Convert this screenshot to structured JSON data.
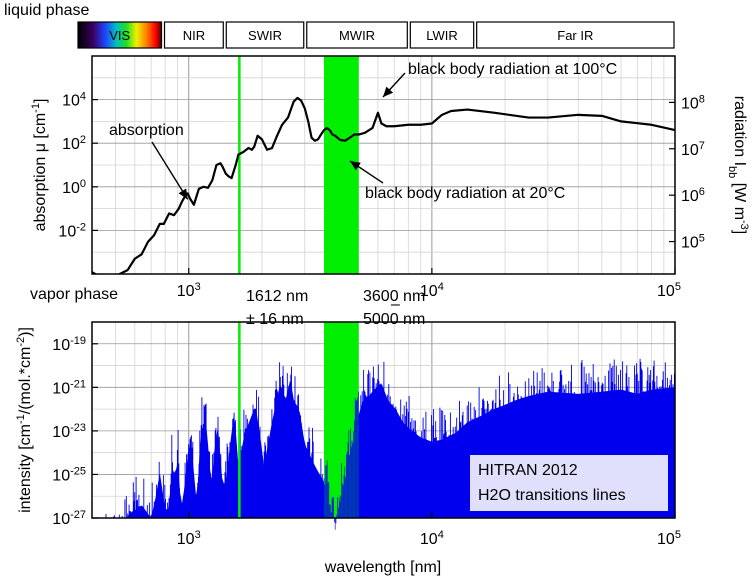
{
  "chart_data": [
    {
      "type": "line",
      "title": "liquid phase",
      "x_scale": "log",
      "xlim_nm": [
        400,
        100000
      ],
      "x_ticks": [
        1000,
        10000,
        100000
      ],
      "x_tick_labels": [
        [
          "10",
          "3"
        ],
        [
          "10",
          "4"
        ],
        [
          "10",
          "5"
        ]
      ],
      "grid": true,
      "left_axis": {
        "label": "absorption  μ [cm",
        "label_sup": "-1",
        "label_end": "]",
        "scale": "log",
        "ylim": [
          0.0001,
          1000000
        ],
        "ticks": [
          0.01,
          1,
          100,
          10000
        ],
        "tick_labels": [
          [
            "10",
            "-2"
          ],
          [
            "10",
            "0"
          ],
          [
            "10",
            "2"
          ],
          [
            "10",
            "4"
          ]
        ]
      },
      "right_axis": {
        "label": "radiation I",
        "label_sub": "bb",
        "label_units": " [W m",
        "label_sup": "-3",
        "label_end": "]",
        "scale": "log",
        "ylim": [
          20000,
          1000000000
        ],
        "ticks": [
          100000,
          1000000,
          10000000,
          100000000
        ],
        "tick_labels": [
          [
            "10",
            "5"
          ],
          [
            "10",
            "6"
          ],
          [
            "10",
            "7"
          ],
          [
            "10",
            "8"
          ]
        ]
      },
      "bands": [
        {
          "name": "VIS",
          "from": 400,
          "to": 780
        },
        {
          "name": "NIR",
          "from": 780,
          "to": 1400
        },
        {
          "name": "SWIR",
          "from": 1400,
          "to": 3000
        },
        {
          "name": "MWIR",
          "from": 3000,
          "to": 8000
        },
        {
          "name": "LWIR",
          "from": 8000,
          "to": 15000
        },
        {
          "name": "Far IR",
          "from": 15000,
          "to": 100000
        }
      ],
      "series": [
        {
          "name": "absorption",
          "axis": "left",
          "color": "#000000",
          "x": [
            400,
            450,
            480,
            520,
            560,
            600,
            640,
            680,
            720,
            760,
            790,
            830,
            870,
            910,
            940,
            970,
            990,
            1010,
            1050,
            1100,
            1150,
            1200,
            1250,
            1300,
            1350,
            1380,
            1420,
            1460,
            1500,
            1560,
            1600,
            1680,
            1760,
            1820,
            1860,
            1920,
            2000,
            2100,
            2200,
            2300,
            2420,
            2560,
            2700,
            2800,
            2900,
            3000,
            3100,
            3200,
            3300,
            3400,
            3500,
            3600,
            3700,
            3800,
            3900,
            4000,
            4200,
            4400,
            4600,
            4800,
            5000,
            5300,
            5700,
            6000,
            6200,
            6500,
            7000,
            8000,
            9000,
            10000,
            11000,
            12000,
            14000,
            18000,
            25000,
            30000,
            40000,
            50000,
            60000,
            80000,
            100000
          ],
          "y": [
            0.00012,
            6e-05,
            5e-05,
            0.0001,
            0.00015,
            0.0005,
            0.0008,
            0.003,
            0.006,
            0.02,
            0.02,
            0.06,
            0.05,
            0.1,
            0.22,
            0.4,
            0.5,
            0.3,
            0.15,
            0.8,
            1.0,
            0.9,
            2.0,
            10,
            12,
            8,
            4,
            3,
            2.5,
            10,
            30,
            40,
            60,
            50,
            70,
            220,
            150,
            50,
            60,
            200,
            700,
            1500,
            8000,
            12000,
            9000,
            4000,
            1000,
            180,
            130,
            150,
            250,
            400,
            500,
            400,
            250,
            220,
            140,
            130,
            180,
            250,
            250,
            300,
            500,
            2500,
            800,
            600,
            600,
            700,
            700,
            800,
            2000,
            3000,
            3500,
            2500,
            1500,
            1500,
            2000,
            1800,
            1000,
            700,
            400
          ]
        },
        {
          "name": "black body radiation at 100°C",
          "axis": "right",
          "color": "#e00000",
          "dashed": true,
          "temperature_K": 373.15
        },
        {
          "name": "black body radiation at 20°C",
          "axis": "right",
          "color": "#0000d0",
          "dashed": true,
          "temperature_K": 293.15
        }
      ],
      "highlights": [
        {
          "color": "#00ee00",
          "from": 1596,
          "to": 1628
        },
        {
          "color": "#00ee00",
          "from": 3600,
          "to": 5000
        }
      ],
      "annotations": [
        {
          "text": "absorption",
          "target_series": "absorption"
        },
        {
          "text": "black body radiation at 100°C",
          "target_series": "black body radiation at 100°C"
        },
        {
          "text": "black body radiation at 20°C",
          "target_series": "black body radiation at 20°C"
        }
      ]
    },
    {
      "type": "bar",
      "title": "vapor phase",
      "x_scale": "log",
      "xlim_nm": [
        400,
        100000
      ],
      "x_ticks": [
        1000,
        10000,
        100000
      ],
      "x_tick_labels": [
        [
          "10",
          "3"
        ],
        [
          "10",
          "4"
        ],
        [
          "10",
          "5"
        ]
      ],
      "xlabel": "wavelength [nm]",
      "ylabel": "intensity [cm",
      "ylabel_sup1": "-1",
      "ylabel_mid": "/(mol.*cm",
      "ylabel_sup2": "-2",
      "ylabel_end": ")]",
      "y_scale": "log",
      "ylim": [
        1e-27,
        1e-18
      ],
      "y_ticks": [
        1e-27,
        1e-25,
        1e-23,
        1e-21,
        1e-19
      ],
      "y_tick_labels": [
        [
          "10",
          "-27"
        ],
        [
          "10",
          "-25"
        ],
        [
          "10",
          "-23"
        ],
        [
          "10",
          "-21"
        ],
        [
          "10",
          "-19"
        ]
      ],
      "grid": true,
      "series_color": "#0000ee",
      "envelope": {
        "x": [
          400,
          500,
          560,
          640,
          700,
          730,
          760,
          800,
          830,
          850,
          880,
          900,
          930,
          960,
          990,
          1020,
          1080,
          1120,
          1180,
          1240,
          1280,
          1320,
          1380,
          1430,
          1480,
          1540,
          1600,
          1700,
          1800,
          1880,
          1960,
          2040,
          2200,
          2380,
          2500,
          2620,
          2700,
          2850,
          3000,
          3150,
          3300,
          3500,
          3700,
          3850,
          4000,
          4150,
          4300,
          4500,
          4700,
          4900,
          5200,
          5500,
          5800,
          6200,
          6600,
          7100,
          7600,
          8300,
          9000,
          10000,
          11000,
          12500,
          14000,
          16000,
          18000,
          20000,
          22000,
          25000,
          30000,
          40000,
          50000,
          60000,
          70000,
          80000,
          100000
        ],
        "y_exp": [
          -26.3,
          -26.0,
          -25.3,
          -24.8,
          -25.4,
          -24.5,
          -23.3,
          -25.0,
          -25.0,
          -23.0,
          -23.5,
          -22.5,
          -25.0,
          -24.0,
          -22.5,
          -21.8,
          -24.8,
          -21.4,
          -21.0,
          -24.0,
          -22.0,
          -21.2,
          -24.0,
          -23.5,
          -22.0,
          -20.5,
          -23.0,
          -21.5,
          -20.8,
          -20.2,
          -21.5,
          -23.0,
          -21.0,
          -19.2,
          -20.0,
          -19.0,
          -20.0,
          -20.4,
          -22.0,
          -22.5,
          -23.0,
          -23.5,
          -24.0,
          -25.0,
          -25.8,
          -25.0,
          -24.0,
          -23.0,
          -22.0,
          -21.0,
          -20.0,
          -19.8,
          -19.5,
          -19.2,
          -20.0,
          -20.4,
          -21.0,
          -21.4,
          -21.7,
          -21.9,
          -21.8,
          -21.5,
          -21.0,
          -20.7,
          -20.4,
          -20.2,
          -20.0,
          -19.8,
          -19.6,
          -19.7,
          -19.6,
          -19.5,
          -19.7,
          -19.5,
          -19.4
        ]
      },
      "highlights": [
        {
          "color": "#00ee00",
          "from": 1596,
          "to": 1628
        },
        {
          "color": "#00ee00",
          "from": 3600,
          "to": 5000
        }
      ],
      "highlight_labels": [
        {
          "line1": "1612 nm",
          "line2": "± 16 nm"
        },
        {
          "line1": "3600 nm",
          "line1_dash": "–",
          "line2": "5000 nm"
        }
      ],
      "legend": {
        "line1": "HITRAN 2012",
        "line2": "H2O transitions lines",
        "placement": "bottom-right"
      }
    }
  ]
}
